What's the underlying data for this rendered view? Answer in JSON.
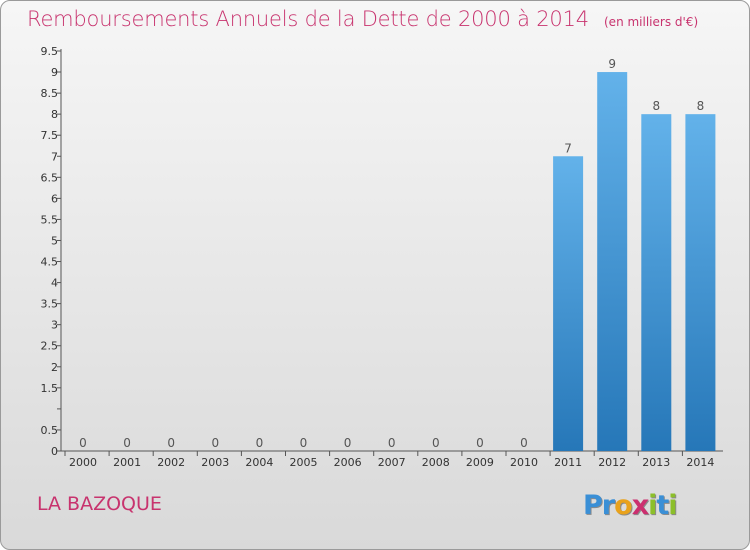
{
  "header": {
    "title": "Remboursements Annuels de la Dette de 2000 à 2014",
    "subtitle": "(en milliers d'€)"
  },
  "commune": "LA BAZOQUE",
  "logo": {
    "text": "Proxiti",
    "letters": [
      {
        "ch": "P",
        "color": "#3a8fd6"
      },
      {
        "ch": "r",
        "color": "#3a8fd6"
      },
      {
        "ch": "o",
        "color": "#e9a21c"
      },
      {
        "ch": "x",
        "color": "#cc2f6f"
      },
      {
        "ch": "i",
        "color": "#8cbf2a"
      },
      {
        "ch": "t",
        "color": "#3a8fd6"
      },
      {
        "ch": "i",
        "color": "#8cbf2a"
      }
    ]
  },
  "colors": {
    "title": "#c8336e",
    "bar_top": "#63b2ea",
    "bar_bottom": "#2677b8",
    "axis": "#555555"
  },
  "chart_data": {
    "type": "bar",
    "categories": [
      "2000",
      "2001",
      "2002",
      "2003",
      "2004",
      "2005",
      "2006",
      "2007",
      "2008",
      "2009",
      "2010",
      "2011",
      "2012",
      "2013",
      "2014"
    ],
    "values": [
      0,
      0,
      0,
      0,
      0,
      0,
      0,
      0,
      0,
      0,
      0,
      7,
      9,
      8,
      8
    ],
    "data_labels": [
      "0",
      "0",
      "0",
      "0",
      "0",
      "0",
      "0",
      "0",
      "0",
      "0",
      "0",
      "7",
      "9",
      "8",
      "8"
    ],
    "title": "Remboursements Annuels de la Dette de 2000 à 2014",
    "ylim": [
      0,
      9.5
    ],
    "yticks": [
      0,
      0.5,
      1,
      1.5,
      2,
      2.5,
      3,
      3.5,
      4,
      4.5,
      5,
      5.5,
      6,
      6.5,
      7,
      7.5,
      8,
      8.5,
      9,
      9.5
    ],
    "ytick_labels": [
      "0",
      "0.5",
      "",
      "1.5",
      "2",
      "2.5",
      "3",
      "3.5",
      "4",
      "4.5",
      "5",
      "5.5",
      "6",
      "6.5",
      "7",
      "7.5",
      "8",
      "8.5",
      "9",
      "9.5"
    ],
    "grid": false
  }
}
